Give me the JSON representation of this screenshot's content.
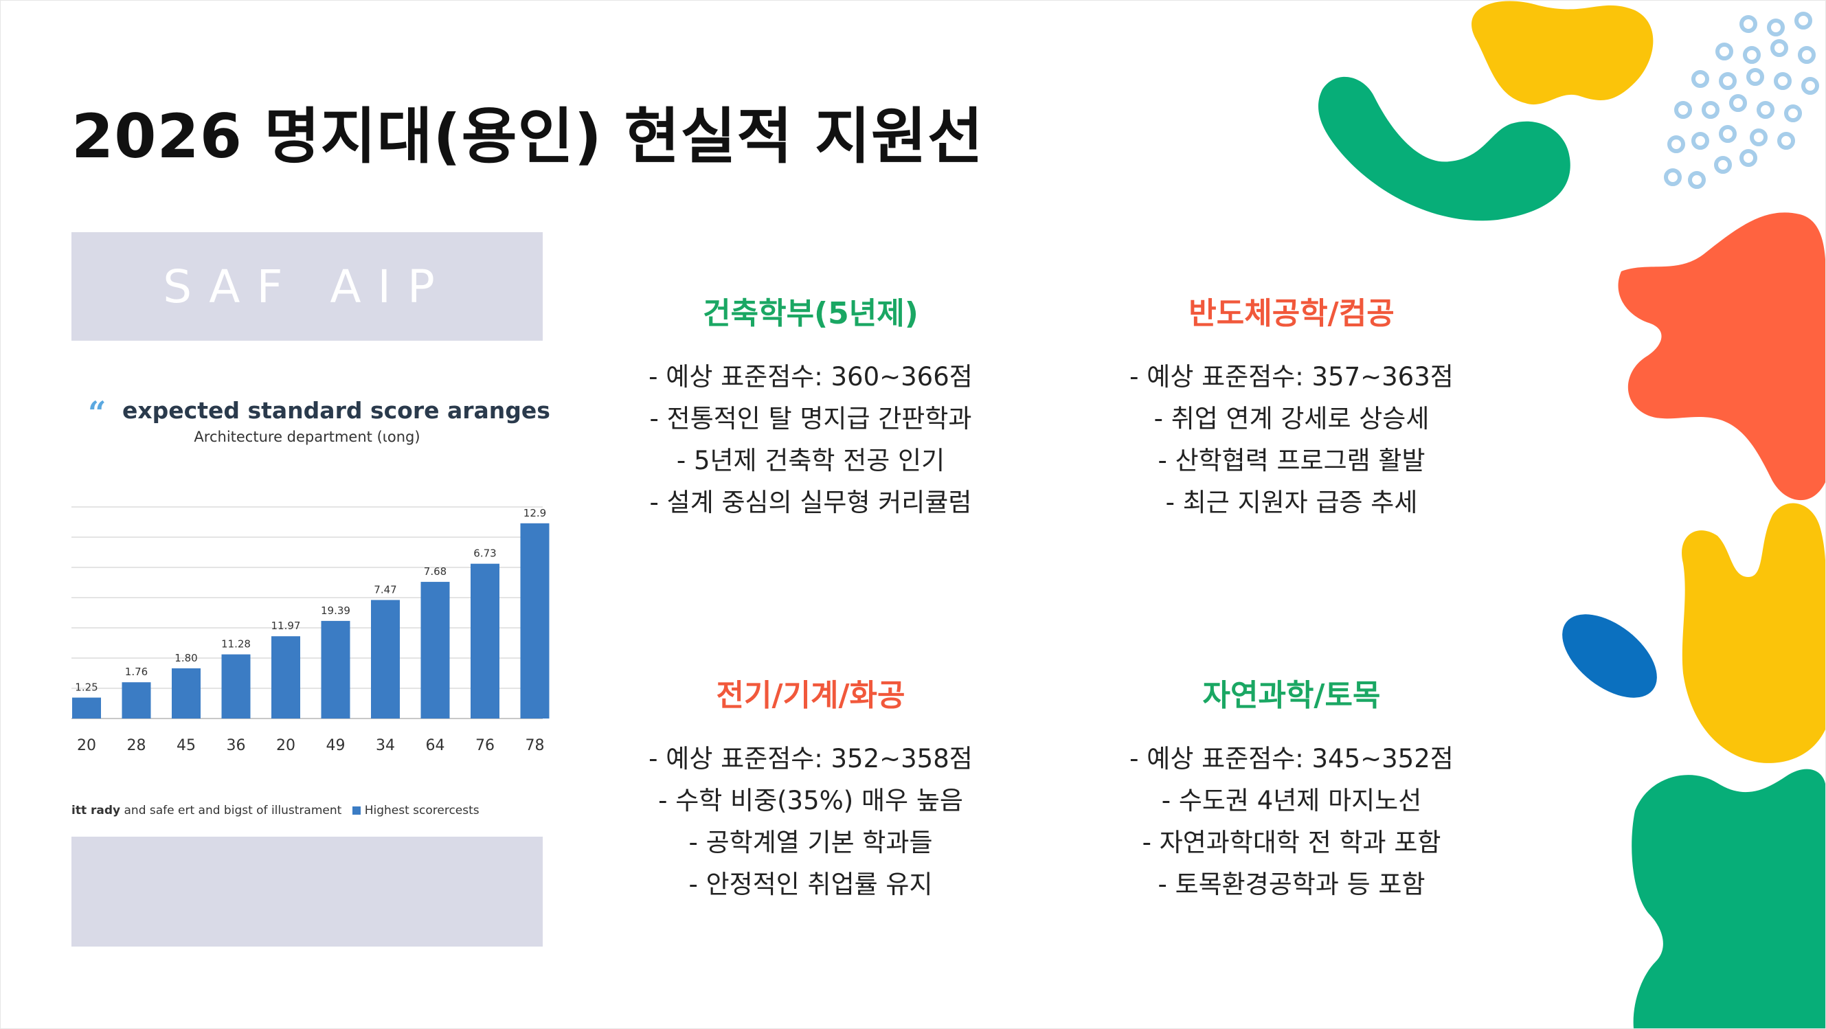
{
  "slide": {
    "title": "2026 명지대(용인) 현실적 지원선"
  },
  "image_panel": {
    "header_text": "SAF AIP",
    "heading": "expected standard score aranges",
    "subheading": "Architecture department (ιοng)",
    "legend_text": "and safe ert and bigst of illustrament",
    "legend_bold_prefix": "itt rady",
    "legend_series": "Highest scorercests"
  },
  "chart_data": {
    "type": "bar",
    "title": "expected standard score aranges",
    "subtitle": "Architecture department (ιοng)",
    "categories": [
      "20",
      "28",
      "45",
      "36",
      "20",
      "49",
      "34",
      "64",
      "76",
      "78"
    ],
    "series": [
      {
        "name": "Highest scorercests",
        "values": [
          1.25,
          1.76,
          1.8,
          11.28,
          11.97,
          19.39,
          7.47,
          7.68,
          6.73,
          12.9
        ]
      }
    ],
    "value_labels": [
      "1.25",
      "1.76",
      "1.80",
      "11.28",
      "11.97",
      "19.39",
      "7.47",
      "7.68",
      "6.73",
      "12.9"
    ],
    "display_levels": [
      0.15,
      0.26,
      0.36,
      0.46,
      0.59,
      0.7,
      0.85,
      0.98,
      1.11,
      1.4
    ],
    "bar_color": "#3b7cc4",
    "grid": true
  },
  "groups": [
    {
      "heading": "건축학부(5년제)",
      "color": "#1aa763",
      "lines": [
        "- 예상 표준점수: 360~366점",
        "- 전통적인 탈 명지급 간판학과",
        "- 5년제 건축학 전공 인기",
        "- 설계 중심의 실무형 커리큘럼"
      ]
    },
    {
      "heading": "반도체공학/컴공",
      "color": "#f1583b",
      "lines": [
        "- 예상 표준점수: 357~363점",
        "- 취업 연계 강세로 상승세",
        "- 산학협력 프로그램 활발",
        "- 최근 지원자 급증 추세"
      ]
    },
    {
      "heading": "전기/기계/화공",
      "color": "#f1583b",
      "lines": [
        "- 예상 표준점수: 352~358점",
        "- 수학 비중(35%) 매우 높음",
        "- 공학계열 기본 학과들",
        "- 안정적인 취업률 유지"
      ]
    },
    {
      "heading": "자연과학/토목",
      "color": "#1aa763",
      "lines": [
        "- 예상 표준점수: 345~352점",
        "- 수도권 4년제 마지노선",
        "- 자연과학대학 전 학과 포함",
        "- 토목환경공학과 등 포함"
      ]
    }
  ],
  "decor_colors": {
    "yellow": "#fbc40a",
    "green": "#07ae78",
    "red": "#ff6340",
    "blue": "#0b70bf",
    "light_blue": "#a6cdea"
  }
}
